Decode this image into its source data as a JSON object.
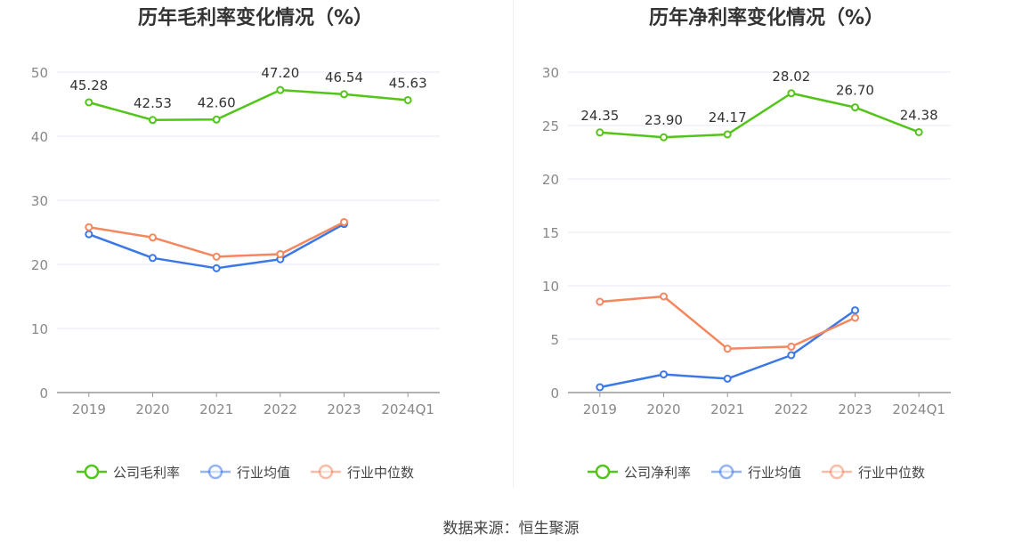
{
  "source": "数据来源：恒生聚源",
  "chart_data": [
    {
      "type": "line",
      "title": "历年毛利率变化情况（%）",
      "categories": [
        "2019",
        "2020",
        "2021",
        "2022",
        "2023",
        "2024Q1"
      ],
      "ylim": [
        0,
        50
      ],
      "yticks": [
        0,
        10,
        20,
        30,
        40,
        50
      ],
      "grid": true,
      "legend_position": "bottom",
      "series": [
        {
          "name": "公司毛利率",
          "color": "#52c41a",
          "values": [
            45.28,
            42.53,
            42.6,
            47.2,
            46.54,
            45.63
          ],
          "labels": [
            "45.28",
            "42.53",
            "42.60",
            "47.20",
            "46.54",
            "45.63"
          ]
        },
        {
          "name": "行业均值",
          "color": "#3b78e7",
          "values": [
            24.7,
            21.0,
            19.4,
            20.8,
            26.3,
            null
          ]
        },
        {
          "name": "行业中位数",
          "color": "#f5875f",
          "values": [
            25.8,
            24.2,
            21.2,
            21.6,
            26.6,
            null
          ]
        }
      ]
    },
    {
      "type": "line",
      "title": "历年净利率变化情况（%）",
      "categories": [
        "2019",
        "2020",
        "2021",
        "2022",
        "2023",
        "2024Q1"
      ],
      "ylim": [
        0,
        30
      ],
      "yticks": [
        0,
        5,
        10,
        15,
        20,
        25,
        30
      ],
      "grid": true,
      "legend_position": "bottom",
      "series": [
        {
          "name": "公司净利率",
          "color": "#52c41a",
          "values": [
            24.35,
            23.9,
            24.17,
            28.02,
            26.7,
            24.38
          ],
          "labels": [
            "24.35",
            "23.90",
            "24.17",
            "28.02",
            "26.70",
            "24.38"
          ]
        },
        {
          "name": "行业均值",
          "color": "#3b78e7",
          "values": [
            0.5,
            1.7,
            1.3,
            3.5,
            7.7,
            null
          ]
        },
        {
          "name": "行业中位数",
          "color": "#f5875f",
          "values": [
            8.5,
            9.0,
            4.1,
            4.3,
            7.0,
            null
          ]
        }
      ]
    }
  ]
}
